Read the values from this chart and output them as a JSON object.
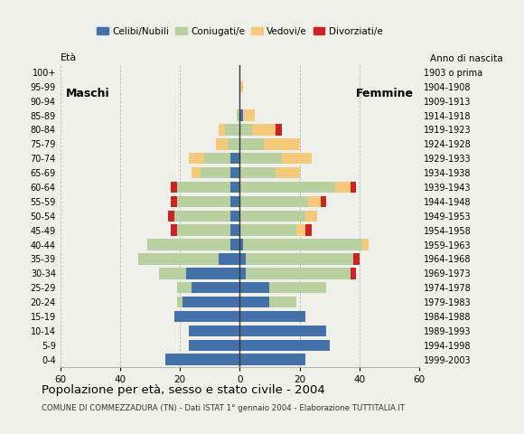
{
  "title": "Popolazione per età, sesso e stato civile - 2004",
  "subtitle": "COMUNE DI COMMEZZADURA (TN) - Dati ISTAT 1° gennaio 2004 - Elaborazione TUTTITALIA.IT",
  "label_maschi": "Maschi",
  "label_femmine": "Femmine",
  "ylabel_left": "Età",
  "ylabel_right": "Anno di nascita",
  "xlim": 60,
  "legend_labels": [
    "Celibi/Nubili",
    "Coniugati/e",
    "Vedovi/e",
    "Divorziati/e"
  ],
  "colors": [
    "#4472a8",
    "#b8cfa0",
    "#f5c97a",
    "#cc2222"
  ],
  "age_groups": [
    "0-4",
    "5-9",
    "10-14",
    "15-19",
    "20-24",
    "25-29",
    "30-34",
    "35-39",
    "40-44",
    "45-49",
    "50-54",
    "55-59",
    "60-64",
    "65-69",
    "70-74",
    "75-79",
    "80-84",
    "85-89",
    "90-94",
    "95-99",
    "100+"
  ],
  "birth_years": [
    "1999-2003",
    "1994-1998",
    "1989-1993",
    "1984-1988",
    "1979-1983",
    "1974-1978",
    "1969-1973",
    "1964-1968",
    "1959-1963",
    "1954-1958",
    "1949-1953",
    "1944-1948",
    "1939-1943",
    "1934-1938",
    "1929-1933",
    "1924-1928",
    "1919-1923",
    "1914-1918",
    "1909-1913",
    "1904-1908",
    "1903 o prima"
  ],
  "males_celibi": [
    25,
    17,
    17,
    22,
    19,
    16,
    18,
    7,
    3,
    3,
    3,
    3,
    3,
    3,
    3,
    0,
    0,
    0,
    0,
    0,
    0
  ],
  "males_coniugati": [
    0,
    0,
    0,
    0,
    2,
    5,
    9,
    27,
    28,
    18,
    19,
    18,
    18,
    10,
    9,
    4,
    5,
    1,
    0,
    0,
    0
  ],
  "males_vedovi": [
    0,
    0,
    0,
    0,
    0,
    0,
    0,
    0,
    0,
    0,
    0,
    0,
    0,
    3,
    5,
    4,
    2,
    0,
    0,
    0,
    0
  ],
  "males_divorziati": [
    0,
    0,
    0,
    0,
    0,
    0,
    0,
    0,
    0,
    2,
    2,
    2,
    2,
    0,
    0,
    0,
    0,
    0,
    0,
    0,
    0
  ],
  "females_nubili": [
    22,
    30,
    29,
    22,
    10,
    10,
    2,
    2,
    1,
    0,
    0,
    0,
    0,
    0,
    0,
    0,
    0,
    1,
    0,
    0,
    0
  ],
  "females_coniugate": [
    0,
    0,
    0,
    0,
    9,
    19,
    35,
    36,
    40,
    19,
    22,
    23,
    32,
    12,
    14,
    8,
    4,
    0,
    0,
    0,
    0
  ],
  "females_vedove": [
    0,
    0,
    0,
    0,
    0,
    0,
    0,
    0,
    2,
    3,
    4,
    4,
    5,
    8,
    10,
    12,
    8,
    4,
    0,
    1,
    0
  ],
  "females_divorziate": [
    0,
    0,
    0,
    0,
    0,
    0,
    2,
    2,
    0,
    2,
    0,
    2,
    2,
    0,
    0,
    0,
    2,
    0,
    0,
    0,
    0
  ],
  "bg_color": "#f0f0eb",
  "grid_color": "#aaaaaa"
}
